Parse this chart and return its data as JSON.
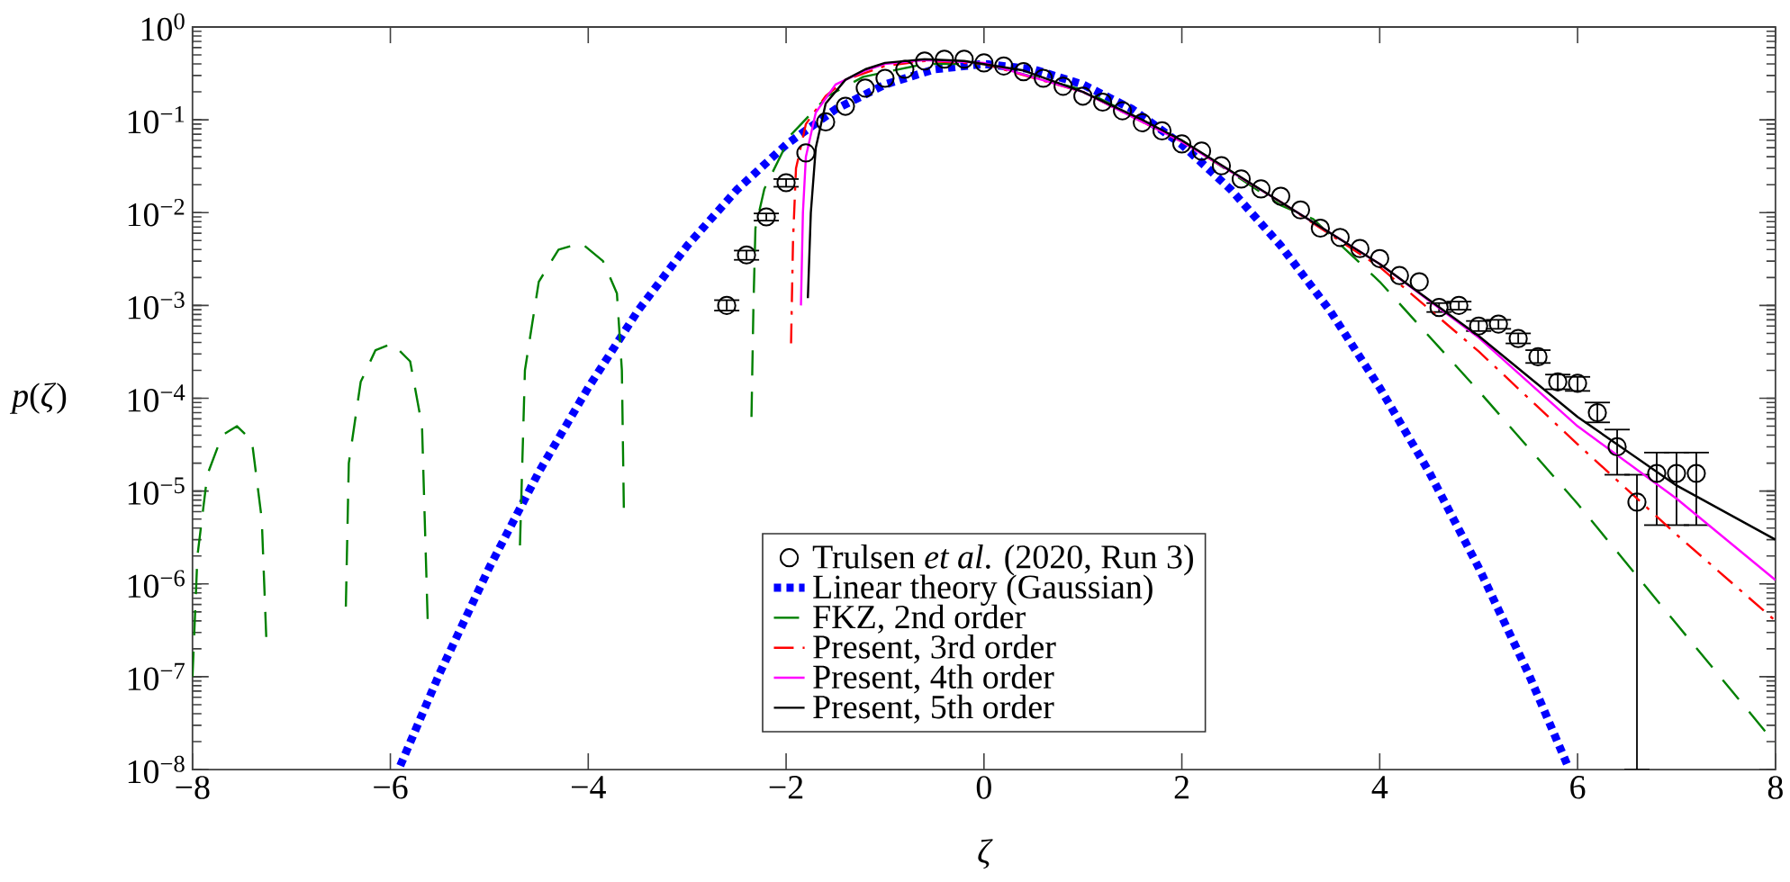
{
  "chart_data": {
    "type": "line",
    "xlabel": "ζ",
    "ylabel": "*p*(*ζ*)",
    "log": "y",
    "legend": "bottom",
    "xlim": [
      -8,
      8
    ],
    "ylim": [
      1e-08,
      1
    ],
    "xticks": [
      {
        "value": -8,
        "label": "−8"
      },
      {
        "value": -6,
        "label": "−6"
      },
      {
        "value": -4,
        "label": "−4"
      },
      {
        "value": -2,
        "label": "−2"
      },
      0,
      2,
      4,
      6,
      8
    ],
    "yticks": [
      {
        "value": 1e-08,
        "label": "10$^{−8}$"
      },
      {
        "value": 1e-07,
        "label": "10$^{−7}$"
      },
      {
        "value": 1e-06,
        "label": "10$^{−6}$"
      },
      {
        "value": 1e-05,
        "label": "10$^{−5}$"
      },
      {
        "value": 0.0001,
        "label": "10$^{−4}$"
      },
      {
        "value": 0.001,
        "label": "10$^{−3}$"
      },
      {
        "value": 0.01,
        "label": "10$^{−2}$"
      },
      {
        "value": 0.1,
        "label": "10$^{−1}$"
      },
      {
        "value": 1,
        "label": "10$^{0}$"
      }
    ],
    "series": [
      {
        "name": "Trulsen *et al*. (2020, Run 3)",
        "type": "scatter",
        "marker": "circle",
        "color": "#000000",
        "x": [
          -2.6,
          -2.4,
          -2.2,
          -2.0,
          -1.8,
          -1.6,
          -1.4,
          -1.2,
          -1.0,
          -0.8,
          -0.6,
          -0.4,
          -0.2,
          0,
          0.2,
          0.4,
          0.6,
          0.8,
          1.0,
          1.2,
          1.4,
          1.6,
          1.8,
          2.0,
          2.2,
          2.4,
          2.6,
          2.8,
          3.0,
          3.2,
          3.4,
          3.6,
          3.8,
          4.0,
          4.2,
          4.4,
          4.6,
          4.8,
          5.0,
          5.2,
          5.4,
          5.6,
          5.8,
          6.0,
          6.2,
          6.4,
          6.6,
          6.8,
          7.0,
          7.2
        ],
        "values": [
          0.001,
          0.0035,
          0.009,
          0.021,
          0.044,
          0.095,
          0.14,
          0.22,
          0.28,
          0.35,
          0.43,
          0.45,
          0.45,
          0.41,
          0.38,
          0.33,
          0.28,
          0.23,
          0.18,
          0.155,
          0.125,
          0.093,
          0.076,
          0.055,
          0.046,
          0.032,
          0.023,
          0.018,
          0.015,
          0.0107,
          0.0068,
          0.0054,
          0.0041,
          0.0032,
          0.0021,
          0.0018,
          0.00095,
          0.001,
          0.0006,
          0.00063,
          0.00044,
          0.00028,
          0.00015,
          0.000145,
          7e-05,
          3e-05,
          7.6e-06,
          1.55e-05,
          1.55e-05,
          1.55e-05
        ],
        "errors": [
          [
            0.00088,
            0.00114
          ],
          [
            0.0031,
            0.0039
          ],
          [
            0.0082,
            0.0098
          ],
          [
            0.019,
            0.023
          ],
          null,
          null,
          null,
          null,
          null,
          null,
          null,
          null,
          null,
          null,
          null,
          null,
          null,
          null,
          null,
          null,
          null,
          null,
          null,
          null,
          null,
          null,
          null,
          null,
          null,
          null,
          null,
          null,
          null,
          null,
          null,
          null,
          [
            0.00085,
            0.00106
          ],
          [
            0.0009,
            0.0011
          ],
          [
            0.00053,
            0.00068
          ],
          [
            0.00056,
            0.0007
          ],
          [
            0.00039,
            0.0005
          ],
          [
            0.00024,
            0.00033
          ],
          [
            0.000125,
            0.00018
          ],
          [
            0.00012,
            0.00017
          ],
          [
            5.5e-05,
            9e-05
          ],
          [
            1.5e-05,
            4.6e-05
          ],
          [
            1e-08,
            1.5e-05
          ],
          [
            4.3e-06,
            2.6e-05
          ],
          [
            4.3e-06,
            2.6e-05
          ],
          [
            4.3e-06,
            2.6e-05
          ]
        ]
      },
      {
        "name": "Linear theory (Gaussian)",
        "type": "line",
        "line_style": "dotted",
        "color": "#0000ff",
        "x": [
          -5.9,
          -5.5,
          -5,
          -4.5,
          -4,
          -3.5,
          -3,
          -2.5,
          -2,
          -1.5,
          -1,
          -0.5,
          0,
          0.5,
          1,
          1.5,
          2,
          2.5,
          3,
          3.5,
          4,
          4.5,
          5,
          5.5,
          5.9
        ],
        "values": [
          1.1e-08,
          1.1e-07,
          1.5e-06,
          1.6e-05,
          0.00013,
          0.00087,
          0.0044,
          0.0175,
          0.054,
          0.13,
          0.24,
          0.35,
          0.4,
          0.35,
          0.24,
          0.13,
          0.054,
          0.0175,
          0.0044,
          0.00087,
          0.00013,
          1.6e-05,
          1.5e-06,
          1.1e-07,
          1.1e-08
        ]
      },
      {
        "name": "FKZ, 2nd order",
        "type": "line",
        "line_style": "dashed",
        "color": "#008000",
        "x": [
          -8,
          -7.95,
          -7.85,
          -7.7,
          -7.55,
          -7.4,
          -7.3,
          -7.25,
          -6.9,
          -6.45,
          -6.42,
          -6.3,
          -6.15,
          -5.98,
          -5.8,
          -5.68,
          -5.62,
          -5.2,
          -4.69,
          -4.64,
          -4.5,
          -4.3,
          -4.07,
          -3.85,
          -3.71,
          -3.66,
          -3.64,
          -3.0,
          -2.35,
          -2.33,
          -2.31,
          -2.22,
          -1.95,
          -1.58,
          -1.22,
          -0.6,
          0,
          1,
          2,
          3,
          3.33,
          4,
          5,
          6,
          7,
          8
        ],
        "values": [
          1e-07,
          2e-06,
          1.5e-05,
          4e-05,
          5e-05,
          3.5e-05,
          5e-06,
          2e-07,
          null,
          5.7e-07,
          2e-05,
          0.00015,
          0.00033,
          0.00039,
          0.00025,
          5e-05,
          3.2e-07,
          null,
          2.6e-06,
          0.0002,
          0.0018,
          0.004,
          0.0047,
          0.003,
          0.00135,
          0.0002,
          6.4e-06,
          null,
          6.3e-05,
          0.001,
          0.0068,
          0.018,
          0.069,
          0.18,
          0.29,
          0.4,
          0.4,
          0.21,
          0.06,
          0.012,
          0.0085,
          0.0018,
          0.00012,
          7.3e-06,
          3.7e-07,
          1.9e-08
        ]
      },
      {
        "name": "Present, 3rd order",
        "type": "line",
        "line_style": "dashdot",
        "color": "#ff0000",
        "x": [
          -1.95,
          -1.93,
          -1.9,
          -1.8,
          -1.6,
          -1.4,
          -1.0,
          -0.6,
          0,
          1,
          2,
          3,
          4,
          5,
          6,
          7,
          8
        ],
        "values": [
          0.00039,
          0.005,
          0.03,
          0.09,
          0.18,
          0.27,
          0.38,
          0.43,
          0.4,
          0.2,
          0.058,
          0.013,
          0.0026,
          0.00032,
          3.2e-05,
          3.4e-06,
          4e-07
        ]
      },
      {
        "name": "Present, 4th order",
        "type": "line",
        "line_style": "solid",
        "color": "#ff00ff",
        "x": [
          -1.85,
          -1.83,
          -1.8,
          -1.7,
          -1.5,
          -1.2,
          -1.0,
          -0.6,
          0,
          1,
          2,
          3,
          4,
          5,
          6,
          7,
          8
        ],
        "values": [
          0.001,
          0.01,
          0.04,
          0.12,
          0.24,
          0.34,
          0.4,
          0.44,
          0.41,
          0.2,
          0.058,
          0.013,
          0.0028,
          0.00045,
          5e-05,
          8.3e-06,
          1.1e-06
        ]
      },
      {
        "name": "Present, 5th order",
        "type": "line",
        "line_style": "solid",
        "color": "#000000",
        "x": [
          -1.78,
          -1.75,
          -1.7,
          -1.6,
          -1.4,
          -1.2,
          -1.0,
          -0.6,
          -0.2,
          0.4,
          1,
          1.6,
          2,
          3,
          4,
          5,
          6,
          7,
          8
        ],
        "values": [
          0.0012,
          0.01,
          0.05,
          0.15,
          0.27,
          0.35,
          0.41,
          0.45,
          0.43,
          0.34,
          0.2,
          0.1,
          0.06,
          0.013,
          0.0028,
          0.00047,
          6.3e-05,
          1.15e-05,
          3e-06
        ]
      }
    ]
  }
}
